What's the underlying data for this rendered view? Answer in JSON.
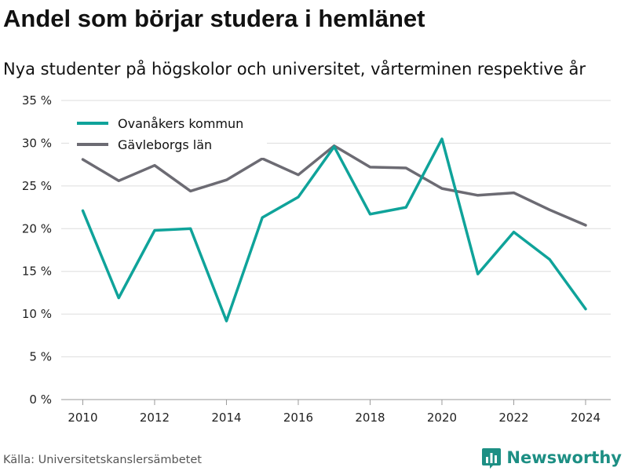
{
  "header": {
    "title": "Andel som börjar studera i hemlänet",
    "subtitle": "Nya studenter på högskolor och universitet, vårterminen respektive år"
  },
  "footer": {
    "source": "Källa: Universitetskanslersämbetet",
    "brand": "Newsworthy",
    "brand_icon": "bar-chart-logo-icon",
    "brand_color": "#1d8f84"
  },
  "chart_data": {
    "type": "line",
    "title": "Andel som börjar studera i hemlänet",
    "subtitle": "Nya studenter på högskolor och universitet, vårterminen respektive år",
    "xlabel": "",
    "ylabel": "",
    "x": [
      2010,
      2011,
      2012,
      2013,
      2014,
      2015,
      2016,
      2017,
      2018,
      2019,
      2020,
      2021,
      2022,
      2023,
      2024
    ],
    "xticks": [
      2010,
      2012,
      2014,
      2016,
      2018,
      2020,
      2022,
      2024
    ],
    "xtick_labels": [
      "2010",
      "2012",
      "2014",
      "2016",
      "2018",
      "2020",
      "2022",
      "2024"
    ],
    "xlim": [
      2009.4,
      2024.7
    ],
    "yticks": [
      0,
      5,
      10,
      15,
      20,
      25,
      30,
      35
    ],
    "ytick_labels": [
      "0 %",
      "5 %",
      "10 %",
      "15 %",
      "20 %",
      "25 %",
      "30 %",
      "35 %"
    ],
    "ylim": [
      0,
      35
    ],
    "grid": true,
    "legend_position": "top-left",
    "series": [
      {
        "name": "Ovanåkers kommun",
        "color": "#0fa39a",
        "values": [
          22.1,
          11.9,
          19.8,
          20.0,
          9.2,
          21.3,
          23.7,
          29.6,
          21.7,
          22.5,
          30.5,
          14.7,
          19.6,
          16.4,
          10.6
        ]
      },
      {
        "name": "Gävleborgs län",
        "color": "#6c6b73",
        "values": [
          28.1,
          25.6,
          27.4,
          24.4,
          25.7,
          28.2,
          26.3,
          29.7,
          27.2,
          27.1,
          24.7,
          23.9,
          24.2,
          22.2,
          20.4
        ]
      }
    ]
  }
}
